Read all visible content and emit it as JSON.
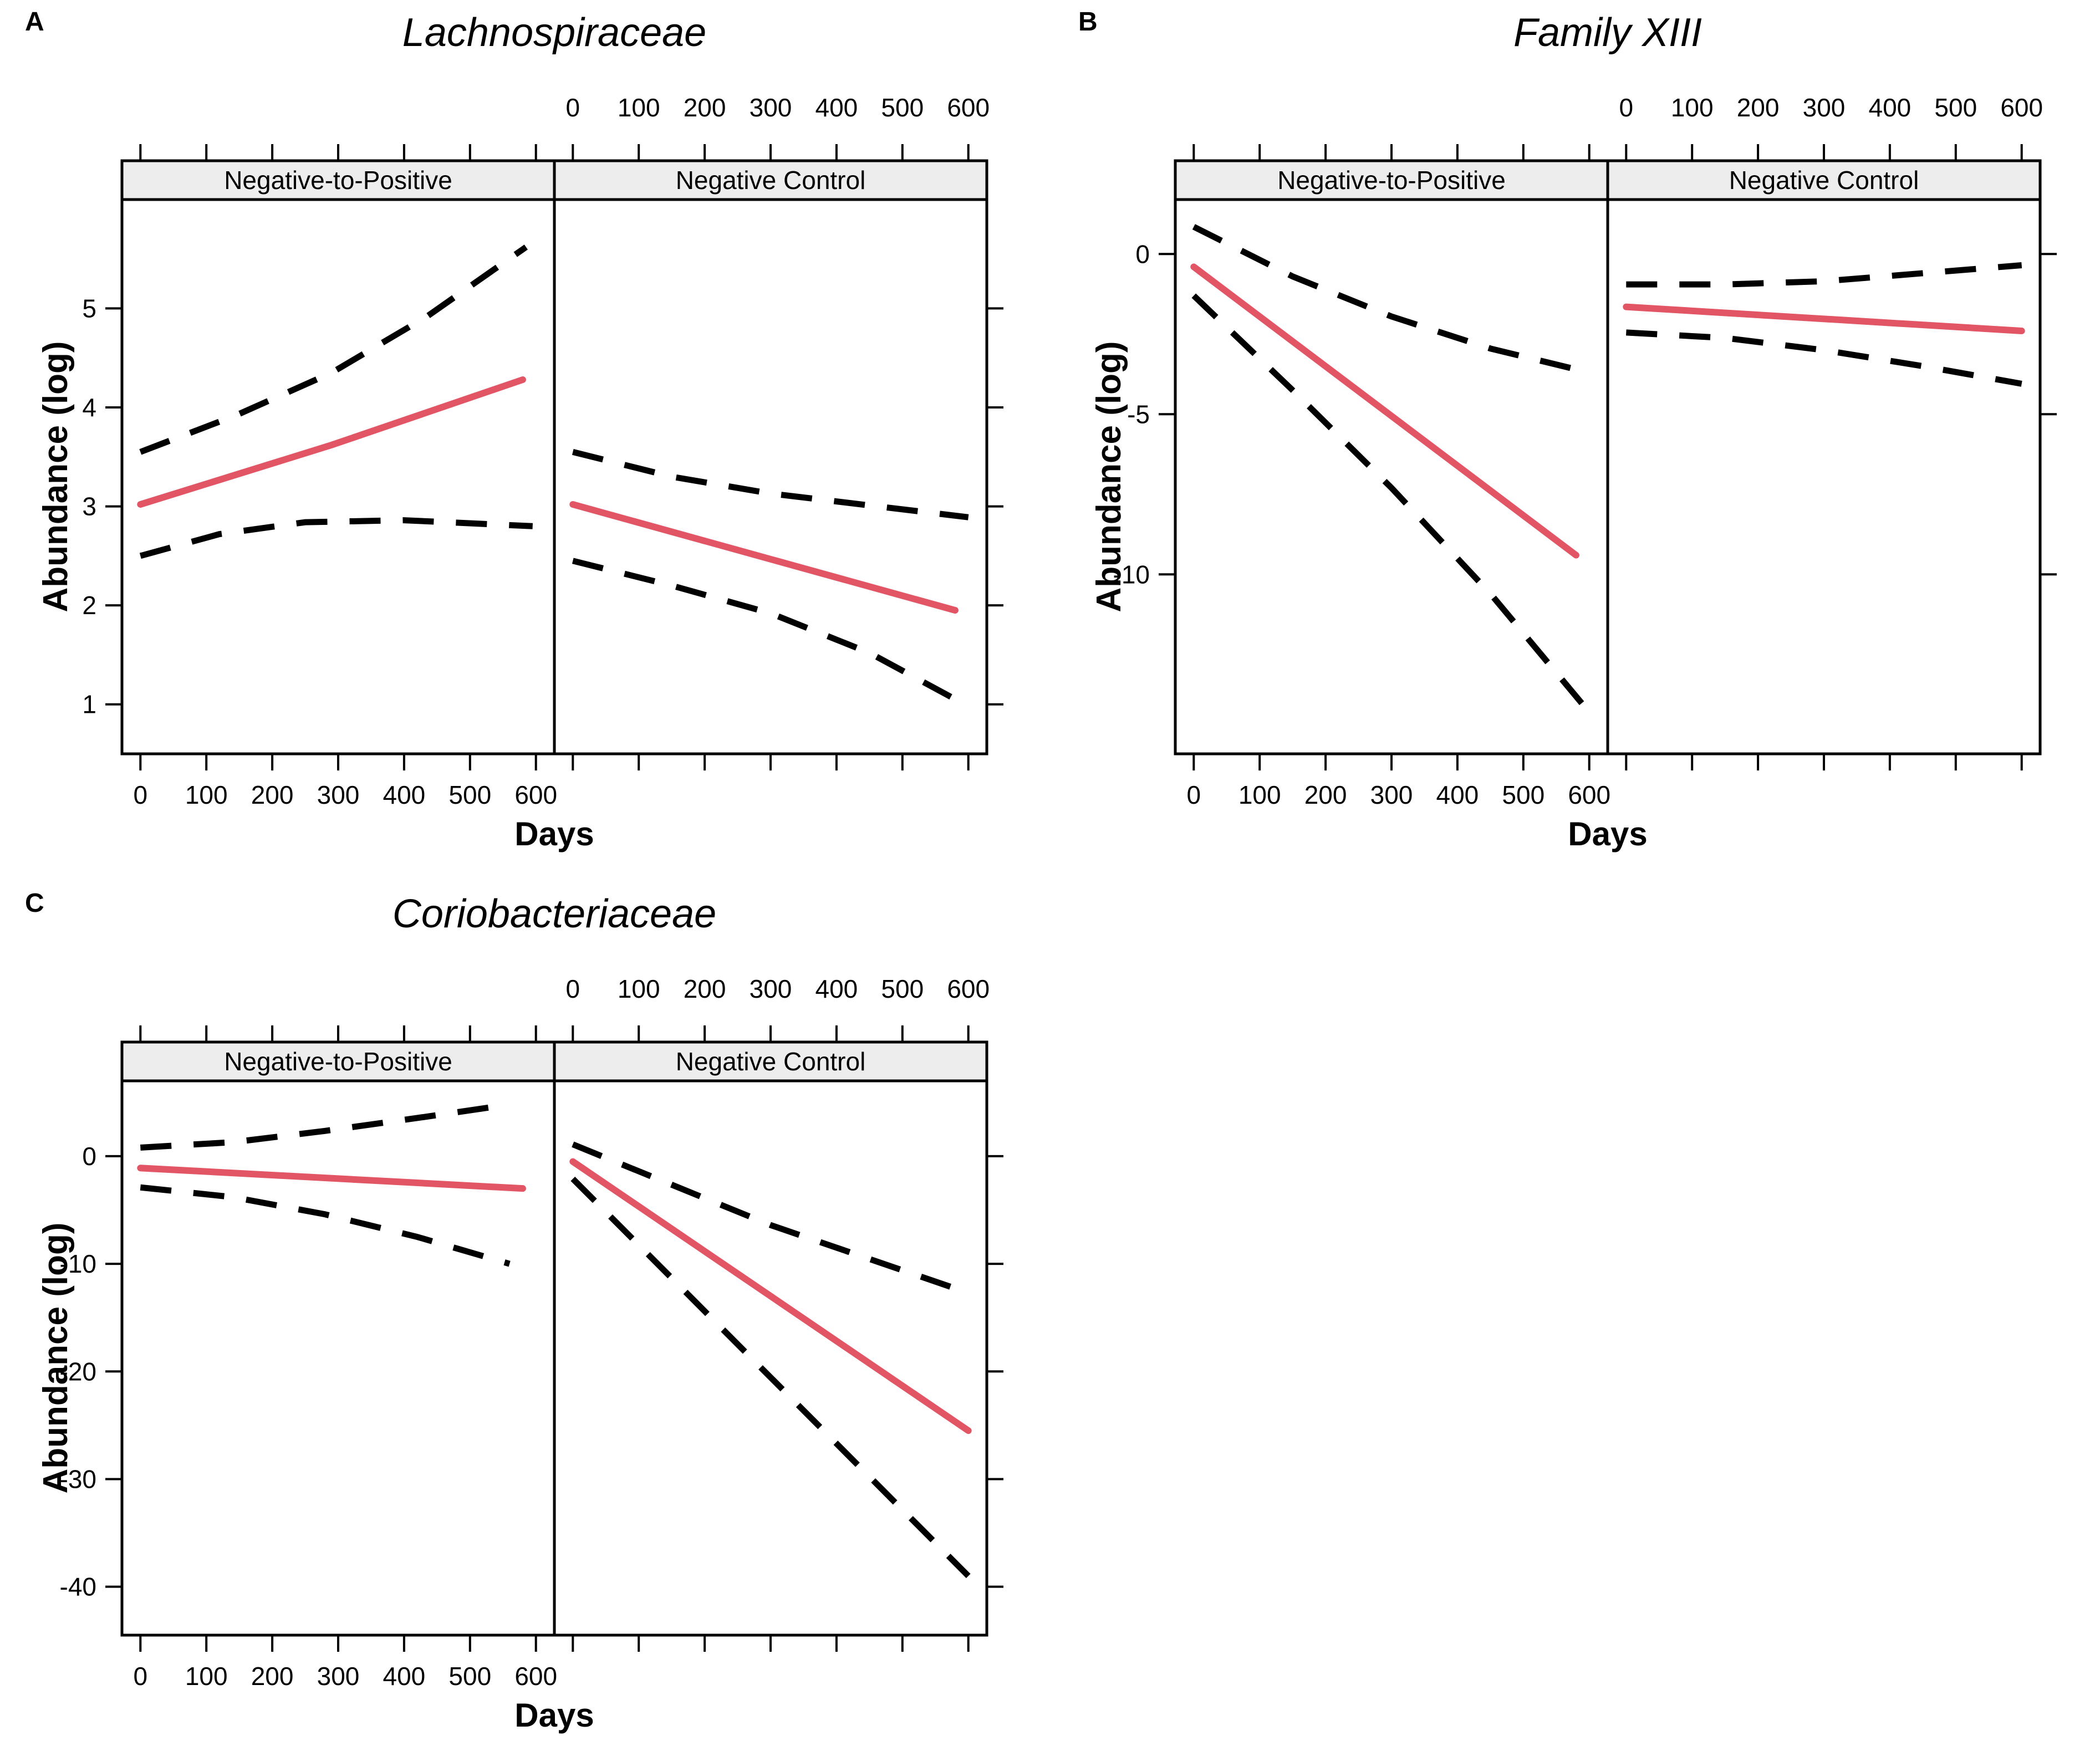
{
  "figure": {
    "ylabel": "Abundance (log)",
    "xlabel": "Days",
    "colors": {
      "background": "#FFFFFF",
      "fit_line": "#E25565",
      "ci_line": "#000000",
      "strip_background": "#EDEDED",
      "axis": "#000000"
    },
    "facet_labels": [
      "Negative-to-Positive",
      "Negative Control"
    ]
  },
  "chart_data": [
    {
      "type": "line",
      "panel_letter": "A",
      "title": "Lachnospiraceae",
      "xlabel": "Days",
      "ylabel": "Abundance (log)",
      "x_ticks": [
        0,
        100,
        200,
        300,
        400,
        500,
        600
      ],
      "y_ticks": [
        1,
        2,
        3,
        4,
        5
      ],
      "xlim": [
        -28,
        628
      ],
      "ylim": [
        0.5,
        6.1
      ],
      "grid": false,
      "facets": [
        {
          "label": "Negative-to-Positive",
          "series": [
            {
              "name": "fitted",
              "line_style": "solid",
              "x": [
                0,
                290,
                580
              ],
              "y": [
                3.02,
                3.62,
                4.28
              ]
            },
            {
              "name": "ci_upper",
              "line_style": "dashed",
              "x": [
                0,
                145,
                290,
                435,
                585
              ],
              "y": [
                3.55,
                3.92,
                4.35,
                4.92,
                5.62
              ]
            },
            {
              "name": "ci_lower",
              "line_style": "dashed",
              "x": [
                0,
                120,
                250,
                400,
                595
              ],
              "y": [
                2.5,
                2.72,
                2.84,
                2.86,
                2.8
              ]
            }
          ]
        },
        {
          "label": "Negative Control",
          "series": [
            {
              "name": "fitted",
              "line_style": "solid",
              "x": [
                0,
                580
              ],
              "y": [
                3.02,
                1.95
              ]
            },
            {
              "name": "ci_upper",
              "line_style": "dashed",
              "x": [
                0,
                150,
                300,
                450,
                600
              ],
              "y": [
                3.55,
                3.3,
                3.13,
                3.01,
                2.89
              ]
            },
            {
              "name": "ci_lower",
              "line_style": "dashed",
              "x": [
                0,
                150,
                300,
                450,
                600
              ],
              "y": [
                2.45,
                2.2,
                1.92,
                1.52,
                0.98
              ]
            }
          ]
        }
      ]
    },
    {
      "type": "line",
      "panel_letter": "B",
      "title": "Family XIII",
      "xlabel": "Days",
      "ylabel": "Abundance (log)",
      "x_ticks": [
        0,
        100,
        200,
        300,
        400,
        500,
        600
      ],
      "y_ticks": [
        0,
        -5,
        -10
      ],
      "xlim": [
        -28,
        628
      ],
      "ylim": [
        -15.6,
        1.7
      ],
      "grid": false,
      "facets": [
        {
          "label": "Negative-to-Positive",
          "series": [
            {
              "name": "fitted",
              "line_style": "solid",
              "x": [
                0,
                580
              ],
              "y": [
                -0.4,
                -9.4
              ]
            },
            {
              "name": "ci_upper",
              "line_style": "dashed",
              "x": [
                0,
                150,
                300,
                450,
                600
              ],
              "y": [
                0.85,
                -0.7,
                -1.95,
                -2.95,
                -3.7
              ]
            },
            {
              "name": "ci_lower",
              "line_style": "dashed",
              "x": [
                0,
                150,
                300,
                450,
                600
              ],
              "y": [
                -1.3,
                -4.25,
                -7.3,
                -10.6,
                -14.3
              ]
            }
          ]
        },
        {
          "label": "Negative Control",
          "series": [
            {
              "name": "fitted",
              "line_style": "solid",
              "x": [
                0,
                600
              ],
              "y": [
                -1.65,
                -2.4
              ]
            },
            {
              "name": "ci_upper",
              "line_style": "dashed",
              "x": [
                0,
                150,
                300,
                450,
                600
              ],
              "y": [
                -0.95,
                -0.95,
                -0.85,
                -0.6,
                -0.35
              ]
            },
            {
              "name": "ci_lower",
              "line_style": "dashed",
              "x": [
                0,
                150,
                300,
                450,
                600
              ],
              "y": [
                -2.45,
                -2.62,
                -3.0,
                -3.5,
                -4.05
              ]
            }
          ]
        }
      ]
    },
    {
      "type": "line",
      "panel_letter": "C",
      "title": "Coriobacteriaceae",
      "xlabel": "Days",
      "ylabel": "Abundance (log)",
      "x_ticks": [
        0,
        100,
        200,
        300,
        400,
        500,
        600
      ],
      "y_ticks": [
        0,
        -10,
        -20,
        -30,
        -40
      ],
      "xlim": [
        -28,
        628
      ],
      "ylim": [
        -44.5,
        7
      ],
      "grid": false,
      "facets": [
        {
          "label": "Negative-to-Positive",
          "series": [
            {
              "name": "fitted",
              "line_style": "solid",
              "x": [
                0,
                580
              ],
              "y": [
                -1.1,
                -3.0
              ]
            },
            {
              "name": "ci_upper",
              "line_style": "dashed",
              "x": [
                0,
                140,
                280,
                420,
                560
              ],
              "y": [
                0.8,
                1.3,
                2.35,
                3.55,
                4.8
              ]
            },
            {
              "name": "ci_lower",
              "line_style": "dashed",
              "x": [
                0,
                140,
                280,
                420,
                560
              ],
              "y": [
                -2.9,
                -3.8,
                -5.4,
                -7.5,
                -10.0
              ]
            }
          ]
        },
        {
          "label": "Negative Control",
          "series": [
            {
              "name": "fitted",
              "line_style": "solid",
              "x": [
                0,
                600
              ],
              "y": [
                -0.5,
                -25.5
              ]
            },
            {
              "name": "ci_upper",
              "line_style": "dashed",
              "x": [
                0,
                300,
                600
              ],
              "y": [
                1.1,
                -6.4,
                -12.7
              ]
            },
            {
              "name": "ci_lower",
              "line_style": "dashed",
              "x": [
                0,
                600
              ],
              "y": [
                -2.1,
                -39.0
              ]
            }
          ]
        }
      ]
    }
  ]
}
